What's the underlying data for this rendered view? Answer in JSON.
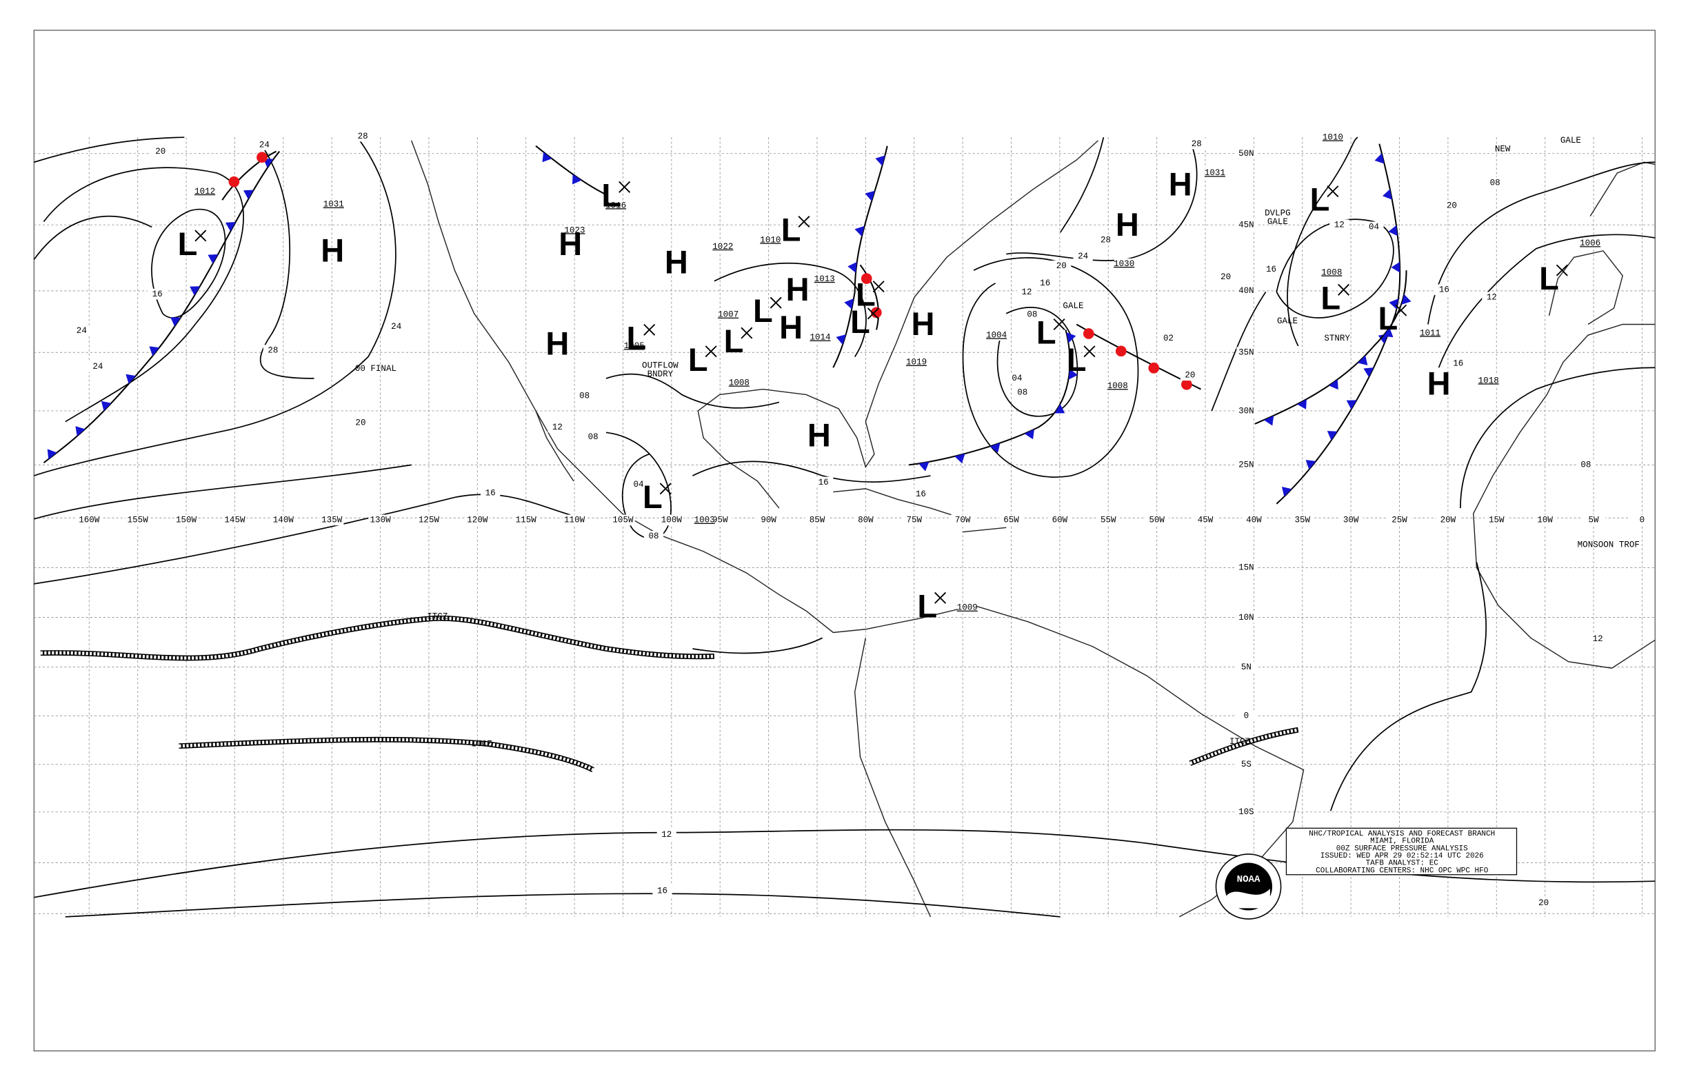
{
  "longitudes": [
    "160W",
    "155W",
    "150W",
    "145W",
    "140W",
    "135W",
    "130W",
    "125W",
    "120W",
    "115W",
    "110W",
    "105W",
    "100W",
    "95W",
    "90W",
    "85W",
    "80W",
    "75W",
    "70W",
    "65W",
    "60W",
    "55W",
    "50W",
    "45W",
    "40W",
    "35W",
    "30W",
    "25W",
    "20W",
    "15W",
    "10W",
    "5W",
    "0"
  ],
  "latitudes": [
    "50N",
    "45N",
    "40N",
    "35N",
    "30N",
    "25N",
    "15N",
    "10N",
    "5N",
    "0",
    "5S",
    "10S"
  ],
  "pressure_centers": [
    {
      "letter": "L",
      "color": "#e8141a"
    },
    {
      "letter": "H",
      "color": "#1414d2"
    },
    {
      "letter": "H",
      "color": "#1414d2"
    },
    {
      "letter": "L",
      "color": "#e8141a"
    },
    {
      "letter": "H",
      "color": "#1414d2"
    },
    {
      "letter": "L",
      "color": "#e8141a"
    },
    {
      "letter": "H",
      "color": "#1414d2"
    },
    {
      "letter": "L",
      "color": "#e8141a"
    },
    {
      "letter": "H",
      "color": "#1414d2"
    },
    {
      "letter": "L",
      "color": "#e8141a"
    },
    {
      "letter": "L",
      "color": "#e8141a"
    },
    {
      "letter": "H",
      "color": "#1414d2"
    },
    {
      "letter": "L",
      "color": "#e8141a"
    },
    {
      "letter": "L",
      "color": "#e8141a"
    },
    {
      "letter": "L",
      "color": "#e8141a"
    },
    {
      "letter": "H",
      "color": "#1414d2"
    },
    {
      "letter": "H",
      "color": "#1414d2"
    },
    {
      "letter": "L",
      "color": "#e8141a"
    },
    {
      "letter": "L",
      "color": "#e8141a"
    },
    {
      "letter": "L",
      "color": "#e8141a"
    },
    {
      "letter": "L",
      "color": "#e8141a"
    },
    {
      "letter": "H",
      "color": "#1414d2"
    },
    {
      "letter": "H",
      "color": "#1414d2"
    },
    {
      "letter": "L",
      "color": "#e8141a"
    },
    {
      "letter": "L",
      "color": "#e8141a"
    },
    {
      "letter": "L",
      "color": "#000000"
    },
    {
      "letter": "L",
      "color": "#000000"
    },
    {
      "letter": "H",
      "color": "#1414d2"
    }
  ],
  "isobar_labels": [
    "1012",
    "1031",
    "1016",
    "1023",
    "1022",
    "1010",
    "1013",
    "1007",
    "1005",
    "1008",
    "1014",
    "1019",
    "1004",
    "1008",
    "1030",
    "1031",
    "1010",
    "1008",
    "1011",
    "1006",
    "1018",
    "1009",
    "1003",
    "20",
    "24",
    "28",
    "16",
    "24",
    "24",
    "28",
    "24",
    "20",
    "16",
    "12",
    "16",
    "20",
    "20",
    "16",
    "12",
    "08",
    "12",
    "28",
    "28",
    "24",
    "20",
    "16",
    "12",
    "08",
    "08",
    "04",
    "02",
    "20",
    "12",
    "04",
    "16",
    "20",
    "08",
    "16",
    "08",
    "12",
    "08",
    "04",
    "08",
    "16",
    "16"
  ],
  "feature_labels": [
    "00 FINAL",
    "OUTFLOW",
    "BNDRY",
    "GALE",
    "DVLPG",
    "GALE",
    "GALE",
    "STNRY",
    "NEW",
    "GALE",
    "MONSOON TROF",
    "ITCZ",
    "ITCZ",
    "ITCZ"
  ],
  "info_box": [
    "NHC/TROPICAL ANALYSIS AND FORECAST BRANCH",
    "MIAMI, FLORIDA",
    "00Z SURFACE PRESSURE ANALYSIS",
    "ISSUED: WED APR 29 02:52:14 UTC 2026",
    "TAFB ANALYST: EC",
    "COLLABORATING CENTERS: NHC OPC WPC HFO"
  ],
  "logo": "NOAA"
}
